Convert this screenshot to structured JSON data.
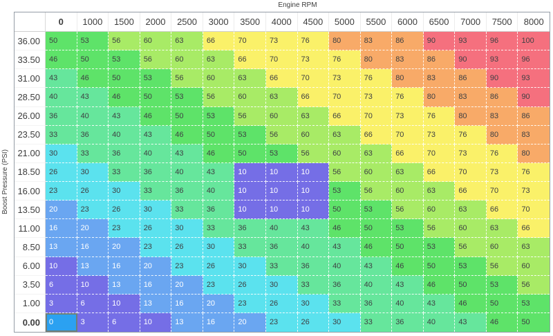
{
  "title": "Engine RPM",
  "y_axis_label": "Boost Pressure (PSI)",
  "table": {
    "columns": [
      "0",
      "1000",
      "1500",
      "2000",
      "2500",
      "3000",
      "3500",
      "4000",
      "4500",
      "5000",
      "5500",
      "6000",
      "6500",
      "7000",
      "7500",
      "8000"
    ],
    "rows": [
      {
        "label": "36.00",
        "values": [
          50,
          53,
          56,
          60,
          63,
          66,
          70,
          73,
          76,
          80,
          83,
          86,
          90,
          93,
          96,
          100
        ]
      },
      {
        "label": "33.50",
        "values": [
          46,
          50,
          53,
          56,
          60,
          63,
          66,
          70,
          73,
          76,
          80,
          83,
          86,
          90,
          93,
          96
        ]
      },
      {
        "label": "31.00",
        "values": [
          43,
          46,
          50,
          53,
          56,
          60,
          63,
          66,
          70,
          73,
          76,
          80,
          83,
          86,
          90,
          93
        ]
      },
      {
        "label": "28.50",
        "values": [
          40,
          43,
          46,
          50,
          53,
          56,
          60,
          63,
          66,
          70,
          73,
          76,
          80,
          83,
          86,
          90
        ]
      },
      {
        "label": "26.00",
        "values": [
          36,
          40,
          43,
          46,
          50,
          53,
          56,
          60,
          63,
          66,
          70,
          73,
          76,
          80,
          83,
          86
        ]
      },
      {
        "label": "23.50",
        "values": [
          33,
          36,
          40,
          43,
          46,
          50,
          53,
          56,
          60,
          63,
          66,
          70,
          73,
          76,
          80,
          83
        ]
      },
      {
        "label": "21.00",
        "values": [
          30,
          33,
          36,
          40,
          43,
          46,
          50,
          53,
          56,
          60,
          63,
          66,
          70,
          73,
          76,
          80
        ]
      },
      {
        "label": "18.50",
        "values": [
          26,
          30,
          33,
          36,
          40,
          43,
          10,
          10,
          10,
          56,
          60,
          63,
          66,
          70,
          73,
          76
        ]
      },
      {
        "label": "16.00",
        "values": [
          23,
          26,
          30,
          33,
          36,
          40,
          10,
          10,
          10,
          53,
          56,
          60,
          63,
          66,
          70,
          73
        ]
      },
      {
        "label": "13.50",
        "values": [
          20,
          23,
          26,
          30,
          33,
          36,
          10,
          10,
          10,
          50,
          53,
          56,
          60,
          63,
          66,
          70
        ]
      },
      {
        "label": "11.00",
        "values": [
          16,
          20,
          23,
          26,
          30,
          33,
          36,
          40,
          43,
          46,
          50,
          53,
          56,
          60,
          63,
          66
        ]
      },
      {
        "label": "8.50",
        "values": [
          13,
          16,
          20,
          23,
          26,
          30,
          33,
          36,
          40,
          43,
          46,
          50,
          53,
          56,
          60,
          63
        ]
      },
      {
        "label": "6.00",
        "values": [
          10,
          13,
          16,
          20,
          23,
          26,
          30,
          33,
          36,
          40,
          43,
          46,
          50,
          53,
          56,
          60
        ]
      },
      {
        "label": "3.50",
        "values": [
          6,
          10,
          13,
          16,
          20,
          23,
          26,
          30,
          33,
          36,
          40,
          43,
          46,
          50,
          53,
          56
        ]
      },
      {
        "label": "1.00",
        "values": [
          3,
          6,
          10,
          13,
          16,
          20,
          23,
          26,
          30,
          33,
          36,
          40,
          43,
          46,
          50,
          53
        ]
      },
      {
        "label": "0.00",
        "values": [
          0,
          3,
          6,
          10,
          13,
          16,
          20,
          23,
          26,
          30,
          33,
          36,
          40,
          43,
          46,
          50
        ]
      }
    ],
    "selected": {
      "row_index": 15,
      "col_index": 0,
      "row_label": "0.00",
      "column_label": "0",
      "value": 0
    }
  },
  "palette": {
    "selected_cell": "#2ba1f1",
    "selected_border": "#6f7f79",
    "text_light": "#ffffff",
    "text_dark": "#3e4043",
    "light_text_max": 20,
    "bins": [
      {
        "max": 12,
        "color": "#756ee6"
      },
      {
        "max": 22,
        "color": "#6aa6f1"
      },
      {
        "max": 32,
        "color": "#5be2ee"
      },
      {
        "max": 45,
        "color": "#66e69c"
      },
      {
        "max": 55,
        "color": "#5ee369"
      },
      {
        "max": 64,
        "color": "#a8eb66"
      },
      {
        "max": 78,
        "color": "#faf169"
      },
      {
        "max": 88,
        "color": "#f8aa68"
      },
      {
        "max": 100,
        "color": "#f5707e"
      }
    ]
  },
  "chart_data": {
    "type": "heatmap",
    "title": "Engine RPM",
    "xlabel": "Engine RPM",
    "ylabel": "Boost Pressure (PSI)",
    "x": [
      0,
      1000,
      1500,
      2000,
      2500,
      3000,
      3500,
      4000,
      4500,
      5000,
      5500,
      6000,
      6500,
      7000,
      7500,
      8000
    ],
    "y": [
      36.0,
      33.5,
      31.0,
      28.5,
      26.0,
      23.5,
      21.0,
      18.5,
      16.0,
      13.5,
      11.0,
      8.5,
      6.0,
      3.5,
      1.0,
      0.0
    ],
    "values": [
      [
        50,
        53,
        56,
        60,
        63,
        66,
        70,
        73,
        76,
        80,
        83,
        86,
        90,
        93,
        96,
        100
      ],
      [
        46,
        50,
        53,
        56,
        60,
        63,
        66,
        70,
        73,
        76,
        80,
        83,
        86,
        90,
        93,
        96
      ],
      [
        43,
        46,
        50,
        53,
        56,
        60,
        63,
        66,
        70,
        73,
        76,
        80,
        83,
        86,
        90,
        93
      ],
      [
        40,
        43,
        46,
        50,
        53,
        56,
        60,
        63,
        66,
        70,
        73,
        76,
        80,
        83,
        86,
        90
      ],
      [
        36,
        40,
        43,
        46,
        50,
        53,
        56,
        60,
        63,
        66,
        70,
        73,
        76,
        80,
        83,
        86
      ],
      [
        33,
        36,
        40,
        43,
        46,
        50,
        53,
        56,
        60,
        63,
        66,
        70,
        73,
        76,
        80,
        83
      ],
      [
        30,
        33,
        36,
        40,
        43,
        46,
        50,
        53,
        56,
        60,
        63,
        66,
        70,
        73,
        76,
        80
      ],
      [
        26,
        30,
        33,
        36,
        40,
        43,
        10,
        10,
        10,
        56,
        60,
        63,
        66,
        70,
        73,
        76
      ],
      [
        23,
        26,
        30,
        33,
        36,
        40,
        10,
        10,
        10,
        53,
        56,
        60,
        63,
        66,
        70,
        73
      ],
      [
        20,
        23,
        26,
        30,
        33,
        36,
        10,
        10,
        10,
        50,
        53,
        56,
        60,
        63,
        66,
        70
      ],
      [
        16,
        20,
        23,
        26,
        30,
        33,
        36,
        40,
        43,
        46,
        50,
        53,
        56,
        60,
        63,
        66
      ],
      [
        13,
        16,
        20,
        23,
        26,
        30,
        33,
        36,
        40,
        43,
        46,
        50,
        53,
        56,
        60,
        63
      ],
      [
        10,
        13,
        16,
        20,
        23,
        26,
        30,
        33,
        36,
        40,
        43,
        46,
        50,
        53,
        56,
        60
      ],
      [
        6,
        10,
        13,
        16,
        20,
        23,
        26,
        30,
        33,
        36,
        40,
        43,
        46,
        50,
        53,
        56
      ],
      [
        3,
        6,
        10,
        13,
        16,
        20,
        23,
        26,
        30,
        33,
        36,
        40,
        43,
        46,
        50,
        53
      ],
      [
        0,
        3,
        6,
        10,
        13,
        16,
        20,
        23,
        26,
        30,
        33,
        36,
        40,
        43,
        46,
        50
      ]
    ]
  }
}
